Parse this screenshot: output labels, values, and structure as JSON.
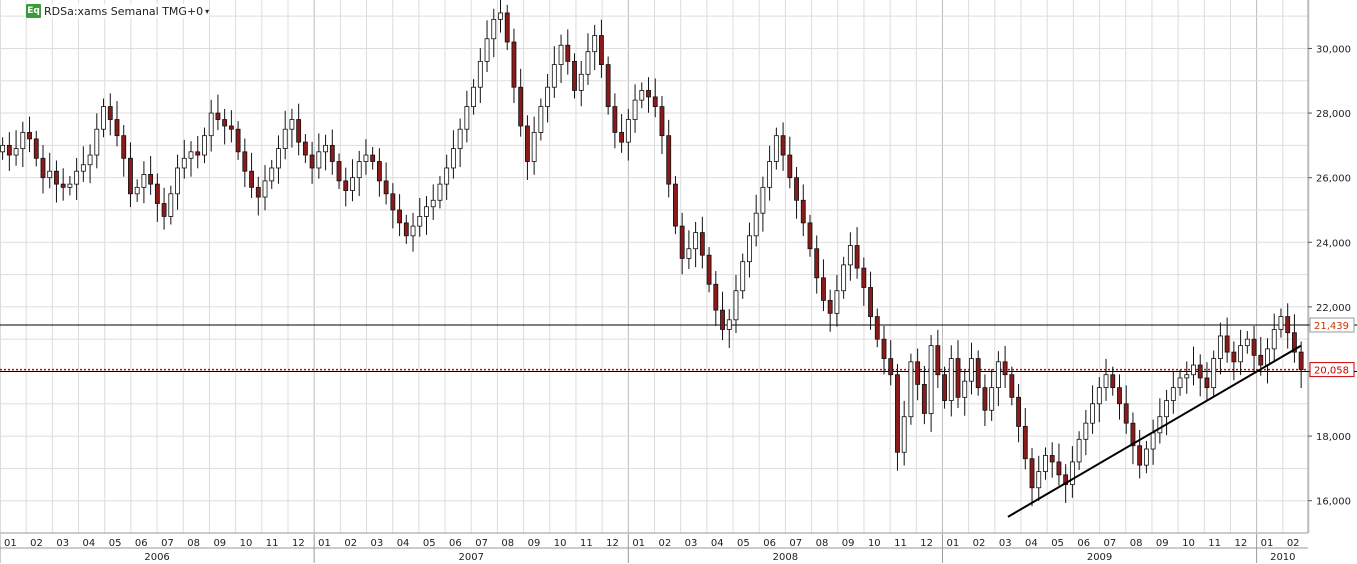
{
  "header": {
    "badge": "Eq",
    "title": "RDSa:xams Semanal TMG+0"
  },
  "colors": {
    "up_candle_fill": "#ffffff",
    "down_candle_fill": "#8b1a1a",
    "candle_outline": "#111111",
    "grid": "#dddddd",
    "support_line": "#000000",
    "current_price_line": "#cc0000",
    "current_price_label": "#cc0000",
    "level_label": "#cc3300"
  },
  "chart_data": {
    "type": "candlestick",
    "timeframe": "weekly",
    "ylim": [
      15000,
      31500
    ],
    "y_ticks": [
      16000,
      18000,
      20000,
      22000,
      24000,
      26000,
      28000,
      30000
    ],
    "y_tick_labels": [
      "16,000",
      "18,000",
      "20,000",
      "22,000",
      "24,000",
      "26,000",
      "28,000",
      "30,000"
    ],
    "x_months": [
      "01",
      "02",
      "03",
      "04",
      "05",
      "06",
      "07",
      "08",
      "09",
      "10",
      "11",
      "12",
      "01",
      "02",
      "03",
      "04",
      "05",
      "06",
      "07",
      "08",
      "09",
      "10",
      "11",
      "12",
      "01",
      "02",
      "03",
      "04",
      "05",
      "06",
      "07",
      "08",
      "09",
      "10",
      "11",
      "12",
      "01",
      "02",
      "03",
      "04",
      "05",
      "06",
      "07",
      "08",
      "09",
      "10",
      "11",
      "12",
      "01",
      "02"
    ],
    "x_years": [
      "2006",
      "2007",
      "2008",
      "2009",
      "2010"
    ],
    "horizontal_levels": [
      {
        "value": 21439,
        "label": "21,439"
      },
      {
        "value": 20000,
        "label": ""
      }
    ],
    "current_price": {
      "value": 20058,
      "label": "20,058"
    },
    "trendline": {
      "from": {
        "month_index": 38.5,
        "value": 15500
      },
      "to": {
        "month_index": 49.7,
        "value": 20800
      }
    },
    "closes": [
      27000,
      26700,
      26900,
      27400,
      27200,
      26600,
      26000,
      26200,
      25800,
      25700,
      25800,
      26200,
      26400,
      26700,
      27500,
      28200,
      27800,
      27300,
      26600,
      25500,
      25700,
      26100,
      25800,
      25200,
      24800,
      25500,
      26300,
      26600,
      26800,
      26700,
      27300,
      28000,
      27800,
      27600,
      27500,
      26800,
      26200,
      25700,
      25400,
      25900,
      26300,
      26900,
      27500,
      27800,
      27100,
      26700,
      26300,
      26800,
      27000,
      26500,
      25900,
      25600,
      26000,
      26500,
      26700,
      26500,
      25900,
      25500,
      25000,
      24600,
      24200,
      24500,
      24800,
      25100,
      25300,
      25800,
      26300,
      26900,
      27500,
      28200,
      28800,
      29600,
      30300,
      30900,
      31100,
      30200,
      28800,
      27600,
      26500,
      27400,
      28200,
      28800,
      29500,
      30100,
      29600,
      28700,
      29200,
      29900,
      30400,
      29500,
      28200,
      27400,
      27100,
      27800,
      28400,
      28700,
      28500,
      28200,
      27300,
      25800,
      24500,
      23500,
      23800,
      24300,
      23600,
      22700,
      21900,
      21300,
      21600,
      22500,
      23400,
      24200,
      24900,
      25700,
      26500,
      27300,
      26700,
      26000,
      25300,
      24600,
      23800,
      22900,
      22200,
      21800,
      22500,
      23300,
      23900,
      23200,
      22600,
      21700,
      21000,
      20400,
      19900,
      17500,
      18600,
      20300,
      19600,
      18700,
      20800,
      19900,
      19100,
      20400,
      19200,
      19700,
      20400,
      19500,
      18800,
      19500,
      20300,
      19900,
      19200,
      18300,
      17300,
      16400,
      16900,
      17400,
      17200,
      16800,
      16500,
      17200,
      17900,
      18400,
      19000,
      19500,
      19900,
      19500,
      19000,
      18400,
      17700,
      17100,
      17600,
      18100,
      18600,
      19100,
      19500,
      19800,
      19900,
      20200,
      19800,
      19500,
      20400,
      21100,
      20600,
      20300,
      20800,
      21000,
      20500,
      20200,
      20700,
      21300,
      21700,
      21200,
      20600,
      20058
    ],
    "opens": [
      26800,
      27000,
      26700,
      26900,
      27400,
      27200,
      26600,
      26000,
      26200,
      25800,
      25700,
      25800,
      26200,
      26400,
      26700,
      27500,
      28200,
      27800,
      27300,
      26600,
      25500,
      25700,
      26100,
      25800,
      25200,
      24800,
      25500,
      26300,
      26600,
      26800,
      26700,
      27300,
      28000,
      27800,
      27600,
      27500,
      26800,
      26200,
      25700,
      25400,
      25900,
      26300,
      26900,
      27500,
      27800,
      27100,
      26700,
      26300,
      26800,
      27000,
      26500,
      25900,
      25600,
      26000,
      26500,
      26700,
      26500,
      25900,
      25500,
      25000,
      24600,
      24200,
      24500,
      24800,
      25100,
      25300,
      25800,
      26300,
      26900,
      27500,
      28200,
      28800,
      29600,
      30300,
      30900,
      31100,
      30200,
      28800,
      27600,
      26500,
      27400,
      28200,
      28800,
      29500,
      30100,
      29600,
      28700,
      29200,
      29900,
      30400,
      29500,
      28200,
      27400,
      27100,
      27800,
      28400,
      28700,
      28500,
      28200,
      27300,
      25800,
      24500,
      23500,
      23800,
      24300,
      23600,
      22700,
      21900,
      21300,
      21600,
      22500,
      23400,
      24200,
      24900,
      25700,
      26500,
      27300,
      26700,
      26000,
      25300,
      24600,
      23800,
      22900,
      22200,
      21800,
      22500,
      23300,
      23900,
      23200,
      22600,
      21700,
      21000,
      20400,
      19900,
      17500,
      18600,
      20300,
      19600,
      18700,
      20800,
      19900,
      19100,
      20400,
      19200,
      19700,
      20400,
      19500,
      18800,
      19500,
      20300,
      19900,
      19200,
      18300,
      17300,
      16400,
      16900,
      17400,
      17200,
      16800,
      16500,
      17200,
      17900,
      18400,
      19000,
      19500,
      19900,
      19500,
      19000,
      18400,
      17700,
      17100,
      17600,
      18100,
      18600,
      19100,
      19500,
      19800,
      19900,
      20200,
      19800,
      19500,
      20400,
      21100,
      20600,
      20300,
      20800,
      21000,
      20500,
      20200,
      20700,
      21300,
      21700,
      21200,
      20600
    ]
  }
}
